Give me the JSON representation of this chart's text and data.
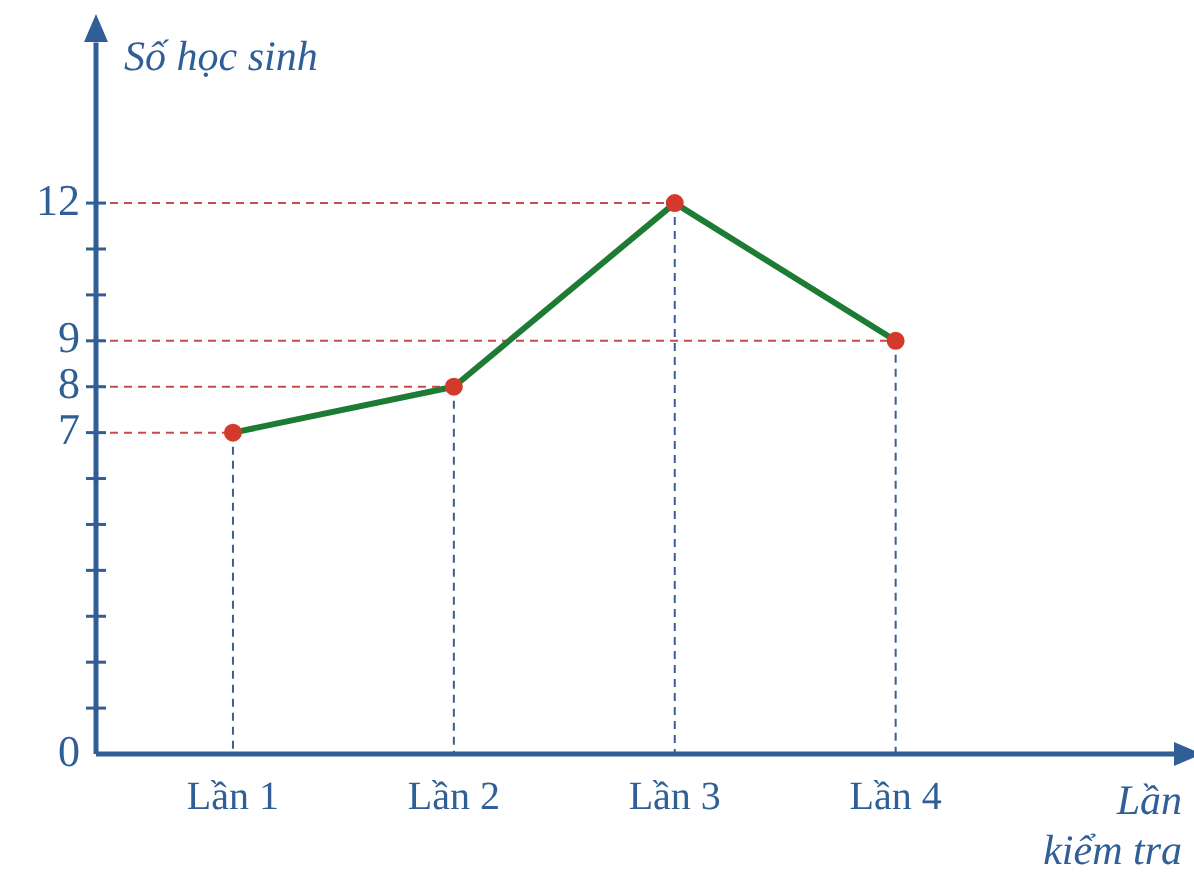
{
  "chart_data": {
    "type": "line",
    "ylabel": "Số học sinh",
    "xlabel": "Lần kiểm tra",
    "categories": [
      "Lần 1",
      "Lần 2",
      "Lần 3",
      "Lần 4"
    ],
    "series": [
      {
        "color": "#1e7b34",
        "values": [
          7,
          8,
          12,
          9
        ]
      }
    ],
    "ylim": [
      0,
      15.5
    ],
    "yticks": [
      0,
      {
        "value": 1,
        "label": null
      },
      {
        "value": 2,
        "label": null
      },
      {
        "value": 3,
        "label": null
      },
      {
        "value": 4,
        "label": null
      },
      {
        "value": 5,
        "label": null
      },
      {
        "value": 6,
        "label": null
      },
      7,
      8,
      9,
      {
        "value": 10,
        "label": null
      },
      {
        "value": 11,
        "label": null
      },
      12
    ],
    "ref_lines": [
      {
        "axis": "y",
        "value": 7,
        "color": "#c94a4a",
        "line_style": "dashed"
      },
      {
        "axis": "y",
        "value": 8,
        "color": "#c94a4a",
        "line_style": "dashed"
      },
      {
        "axis": "y",
        "value": 9,
        "color": "#c94a4a",
        "line_style": "dashed"
      },
      {
        "axis": "y",
        "value": 12,
        "color": "#c94a4a",
        "line_style": "dashed"
      },
      {
        "axis": "x",
        "value": "Lần 1",
        "color": "#3a5f96",
        "line_style": "dashed"
      },
      {
        "axis": "x",
        "value": "Lần 2",
        "color": "#3a5f96",
        "line_style": "dashed"
      },
      {
        "axis": "x",
        "value": "Lần 3",
        "color": "#3a5f96",
        "line_style": "dashed"
      },
      {
        "axis": "x",
        "value": "Lần 4",
        "color": "#3a5f96",
        "line_style": "dashed"
      }
    ],
    "marker": "circle",
    "line_style": "solid",
    "grid": false,
    "legend": false
  }
}
